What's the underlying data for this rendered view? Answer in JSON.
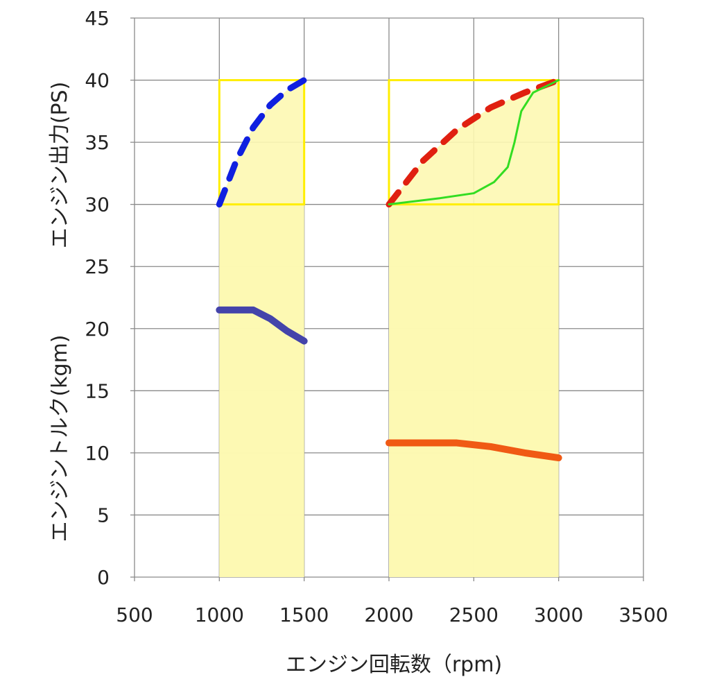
{
  "chart_data": {
    "type": "line",
    "title": "",
    "xlabel": "エンジン回転数（rpm)",
    "ylabel_upper": "エンジン出力(PS)",
    "ylabel_lower": "エンジントルク(kgm)",
    "xlim": [
      500,
      3500
    ],
    "ylim": [
      0,
      45
    ],
    "x_ticks": [
      500,
      1000,
      1500,
      2000,
      2500,
      3000,
      3500
    ],
    "y_ticks": [
      0,
      5,
      10,
      15,
      20,
      25,
      30,
      35,
      40,
      45
    ],
    "grid": true,
    "shaded_bands": [
      {
        "name": "band-1000-1500",
        "x": [
          1000,
          1500
        ],
        "y": [
          0,
          30
        ],
        "color": "#fdf8b3"
      },
      {
        "name": "band-2000-3000",
        "x": [
          2000,
          3000
        ],
        "y": [
          0,
          30
        ],
        "color": "#fdf8b3"
      }
    ],
    "highlight_boxes": [
      {
        "name": "box-1000-1500",
        "x": [
          1000,
          1500
        ],
        "y": [
          30,
          40
        ],
        "color": "#ffee00"
      },
      {
        "name": "box-2000-3000",
        "x": [
          2000,
          3000
        ],
        "y": [
          30,
          40
        ],
        "color": "#ffee00"
      }
    ],
    "series": [
      {
        "name": "power-blue",
        "style": "dashed",
        "color": "#1020e0",
        "x": [
          1000,
          1100,
          1200,
          1300,
          1400,
          1500
        ],
        "y": [
          30,
          33.5,
          36.2,
          38,
          39.2,
          40
        ]
      },
      {
        "name": "power-red",
        "style": "dashed",
        "color": "#e02010",
        "x": [
          2000,
          2200,
          2400,
          2600,
          2800,
          3000
        ],
        "y": [
          30,
          33.5,
          36,
          37.8,
          39,
          40
        ]
      },
      {
        "name": "power-green",
        "style": "solid",
        "color": "#33dd22",
        "x": [
          2000,
          2300,
          2500,
          2620,
          2700,
          2740,
          2780,
          2850,
          3000
        ],
        "y": [
          30,
          30.5,
          30.9,
          31.8,
          33,
          35,
          37.5,
          39,
          40
        ]
      },
      {
        "name": "torque-blue",
        "style": "solid",
        "color": "#4444aa",
        "x": [
          1000,
          1100,
          1200,
          1300,
          1400,
          1500
        ],
        "y": [
          21.5,
          21.5,
          21.5,
          20.8,
          19.8,
          19
        ]
      },
      {
        "name": "torque-orange",
        "style": "solid",
        "color": "#f05a14",
        "x": [
          2000,
          2200,
          2400,
          2600,
          2800,
          3000
        ],
        "y": [
          10.8,
          10.8,
          10.8,
          10.5,
          10,
          9.6
        ]
      }
    ]
  }
}
